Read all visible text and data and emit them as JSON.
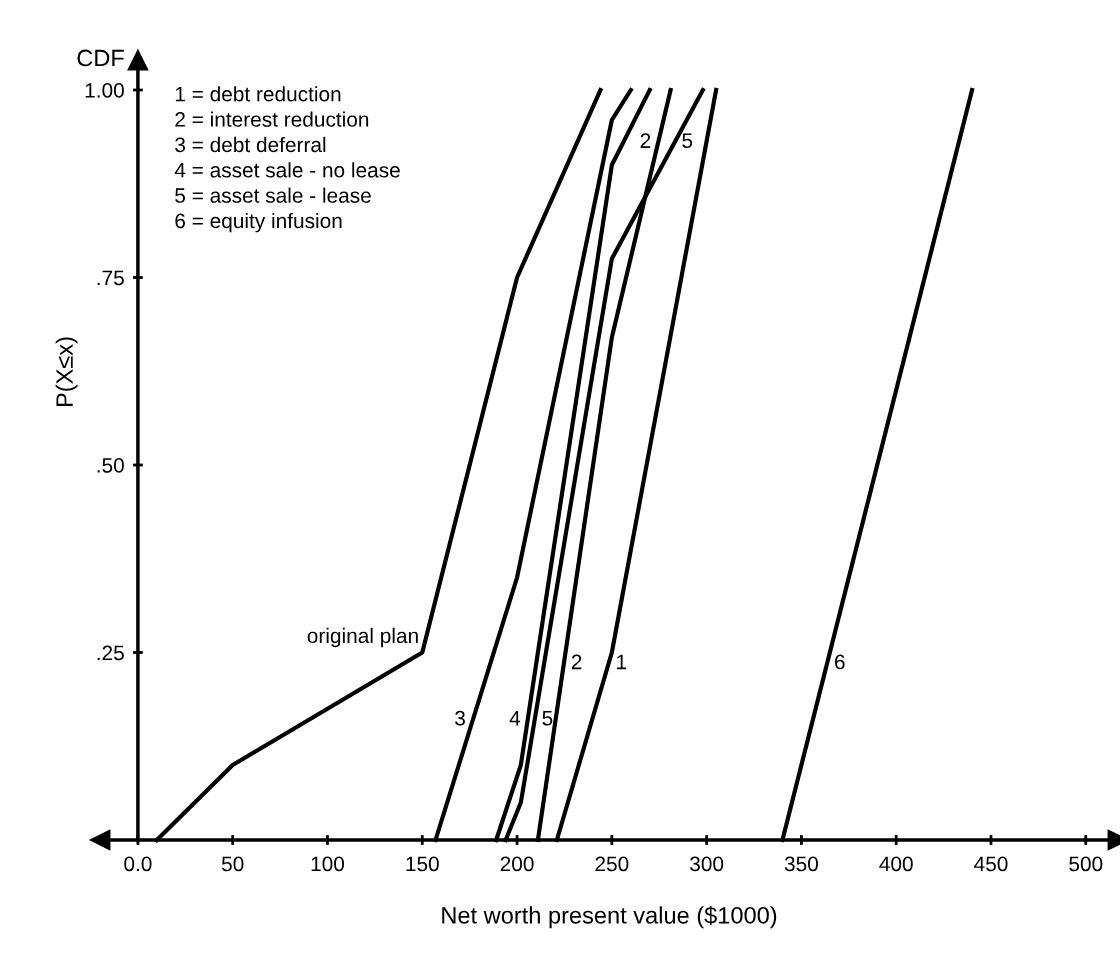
{
  "chart_data": {
    "type": "line",
    "xlabel": "Net worth present value ($1000)",
    "ylabel": "P(X≤x)",
    "xlim": [
      -20,
      517
    ],
    "ylim": [
      0,
      1.04
    ],
    "xticks": [
      {
        "value": 0,
        "label": "0.0"
      },
      50,
      100,
      150,
      200,
      250,
      300,
      350,
      400,
      450,
      500
    ],
    "yticks": [
      {
        "value": 0.25,
        "label": ".25"
      },
      {
        "value": 0.5,
        "label": ".50"
      },
      {
        "value": 0.75,
        "label": ".75"
      },
      {
        "value": 1.0,
        "label": "1.00"
      }
    ],
    "grid": false,
    "marker": "none",
    "line_style": "solid",
    "series": [
      {
        "name": "original plan",
        "color": "#000000",
        "x": [
          10,
          50,
          150,
          200,
          244
        ],
        "values": [
          0,
          0.1,
          0.25,
          0.75,
          1.0
        ]
      },
      {
        "name": "1",
        "color": "#000000",
        "x": [
          221,
          250,
          305
        ],
        "values": [
          0,
          0.25,
          1.0
        ]
      },
      {
        "name": "2",
        "color": "#000000",
        "x": [
          211,
          250,
          281
        ],
        "values": [
          0,
          0.67,
          1.0
        ]
      },
      {
        "name": "3",
        "color": "#000000",
        "x": [
          157,
          200,
          250,
          260
        ],
        "values": [
          0,
          0.35,
          0.96,
          1.0
        ]
      },
      {
        "name": "4",
        "color": "#000000",
        "x": [
          189,
          202,
          250,
          270
        ],
        "values": [
          0,
          0.1,
          0.9,
          1.0
        ]
      },
      {
        "name": "5",
        "color": "#000000",
        "x": [
          194,
          202,
          250,
          298
        ],
        "values": [
          0,
          0.05,
          0.775,
          1.0
        ]
      },
      {
        "name": "6",
        "color": "#000000",
        "x": [
          340,
          440
        ],
        "values": [
          0,
          1.0
        ]
      }
    ],
    "annotations": [
      "CDF",
      "1 = debt reduction",
      "2 = interest reduction",
      "3 = debt deferral",
      "4 = asset sale - no lease",
      "5 = asset sale - lease",
      "6 = equity infusion"
    ]
  }
}
